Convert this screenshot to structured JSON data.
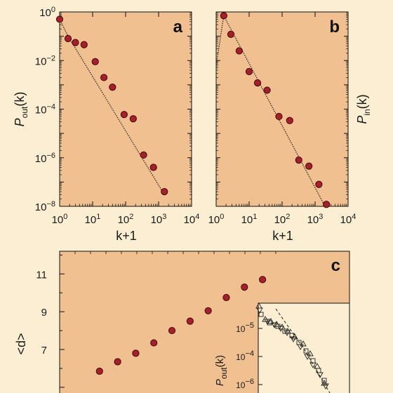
{
  "chart_data": [
    {
      "id": "a",
      "type": "scatter",
      "panel_label": "a",
      "x_scale": "log",
      "y_scale": "log",
      "xlim": [
        1,
        10000
      ],
      "ylim": [
        1e-08,
        1
      ],
      "x_ticks": [
        1,
        10,
        100,
        1000,
        10000
      ],
      "x_tick_labels": [
        [
          "10",
          "0"
        ],
        [
          "10",
          "1"
        ],
        [
          "10",
          "2"
        ],
        [
          "10",
          "3"
        ],
        [
          "10",
          "4"
        ]
      ],
      "y_ticks": [
        1,
        0.01,
        0.0001,
        1e-06,
        1e-08
      ],
      "y_tick_labels": [
        [
          "10",
          "0"
        ],
        [
          "10",
          "−2"
        ],
        [
          "10",
          "−4"
        ],
        [
          "10",
          "−6"
        ],
        [
          "10",
          "−8"
        ]
      ],
      "xlabel": "k+1",
      "ylabel": [
        "P",
        "out",
        "(k)"
      ],
      "fit_line": [
        [
          1,
          0.5
        ],
        [
          1.8,
          0.1
        ],
        [
          1500,
          3e-08
        ]
      ],
      "points": [
        [
          1,
          0.5
        ],
        [
          1.8,
          0.08
        ],
        [
          3,
          0.055
        ],
        [
          5.5,
          0.045
        ],
        [
          12,
          0.009
        ],
        [
          22,
          0.002
        ],
        [
          40,
          0.0008
        ],
        [
          90,
          6e-05
        ],
        [
          170,
          4e-05
        ],
        [
          350,
          1.3e-06
        ],
        [
          700,
          4e-07
        ],
        [
          1500,
          4e-08
        ]
      ]
    },
    {
      "id": "b",
      "type": "scatter",
      "panel_label": "b",
      "x_scale": "log",
      "y_scale": "log",
      "xlim": [
        1,
        10000
      ],
      "ylim": [
        1e-08,
        1
      ],
      "x_ticks": [
        1,
        10,
        100,
        1000,
        10000
      ],
      "x_tick_labels": [
        [
          "10",
          "0"
        ],
        [
          "10",
          "1"
        ],
        [
          "10",
          "2"
        ],
        [
          "10",
          "3"
        ],
        [
          "10",
          "4"
        ]
      ],
      "xlabel": "k+1",
      "ylabel": [
        "P",
        "in",
        "(k)"
      ],
      "fit_line": [
        [
          1,
          0.00625
        ],
        [
          1.7,
          0.7
        ],
        [
          2000,
          1e-08
        ]
      ],
      "points": [
        [
          1.7,
          0.7
        ],
        [
          2.8,
          0.12
        ],
        [
          5,
          0.025
        ],
        [
          10,
          0.0035
        ],
        [
          18,
          0.0012
        ],
        [
          35,
          0.0006
        ],
        [
          80,
          5e-05
        ],
        [
          170,
          3.4e-05
        ],
        [
          320,
          8e-07
        ],
        [
          650,
          4.5e-07
        ],
        [
          1300,
          8e-08
        ],
        [
          2200,
          1.2e-08
        ]
      ]
    },
    {
      "id": "c",
      "type": "scatter",
      "panel_label": "c",
      "x_scale": "linear",
      "y_scale": "linear",
      "ylim": [
        4.4,
        12.2
      ],
      "y_ticks": [
        7,
        9,
        11
      ],
      "y_tick_labels": [
        "7",
        "9",
        "11"
      ],
      "ylabel": "<d>",
      "points_xy": [
        [
          1,
          5.85
        ],
        [
          2,
          6.35
        ],
        [
          3,
          6.8
        ],
        [
          4,
          7.35
        ],
        [
          5,
          8.0
        ],
        [
          6,
          8.5
        ],
        [
          7,
          9.05
        ],
        [
          8,
          9.75
        ],
        [
          9,
          10.3
        ],
        [
          10,
          10.7
        ]
      ],
      "inset": {
        "y_scale": "log",
        "y_ticks": [
          1e-05,
          0.0001,
          1e-06
        ],
        "y_tick_labels": [
          [
            "10",
            "−5"
          ],
          [
            "10",
            "−4"
          ],
          [
            "10",
            "−6"
          ]
        ],
        "ylabel": [
          "P",
          "out",
          "(k)"
        ]
      }
    }
  ]
}
